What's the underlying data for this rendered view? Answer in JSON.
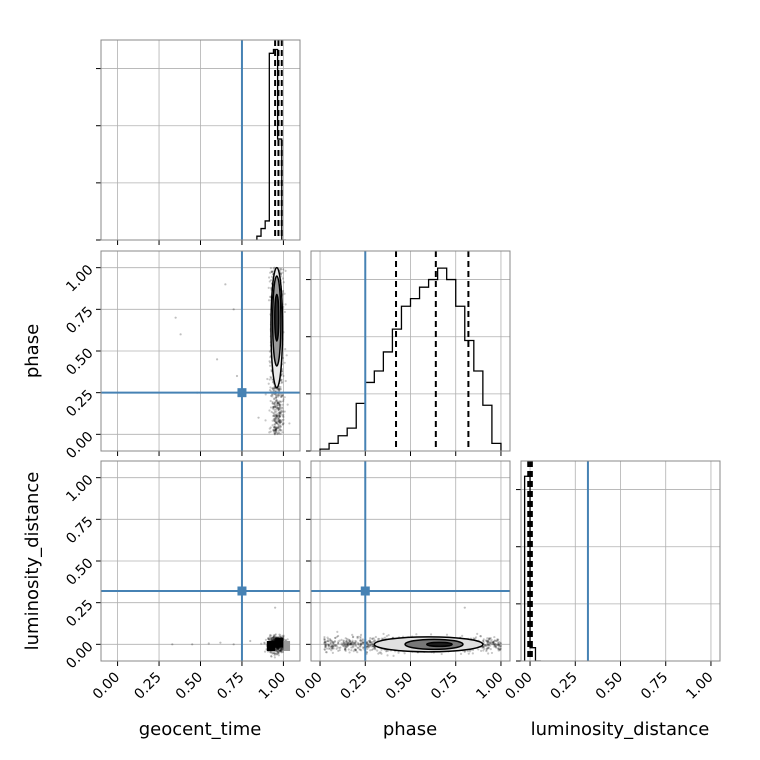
{
  "colors": {
    "truth": "#4682b4",
    "hist": "#000000",
    "grid": "#b0b0b0",
    "frame": "#888888"
  },
  "chart_data": {
    "type": "corner",
    "parameters": [
      "geocent_time",
      "phase",
      "luminosity_distance"
    ],
    "truths": [
      0.75,
      0.25,
      0.32
    ],
    "grid": true,
    "x_ticks": [
      "0.00",
      "0.25",
      "0.50",
      "0.75",
      "1.00"
    ],
    "y_ticks": [
      "0.00",
      "0.25",
      "0.50",
      "0.75",
      "1.00"
    ],
    "diagonal": [
      {
        "parameter": "geocent_time",
        "xlim": [
          -0.1,
          1.1
        ],
        "ymax": 1.0,
        "bin_edges": [
          0.84,
          0.865,
          0.89,
          0.915,
          0.94,
          0.965,
          0.99,
          1.015
        ],
        "counts": [
          0.02,
          0.06,
          0.1,
          0.98,
          1.0,
          0.53,
          0.0
        ],
        "quantiles": [
          0.95,
          0.97,
          0.99
        ]
      },
      {
        "parameter": "phase",
        "xlim": [
          -0.05,
          1.05
        ],
        "ymax": 1.0,
        "bin_edges": [
          0.0,
          0.05,
          0.1,
          0.15,
          0.2,
          0.25,
          0.3,
          0.35,
          0.4,
          0.45,
          0.5,
          0.55,
          0.6,
          0.65,
          0.7,
          0.75,
          0.8,
          0.85,
          0.9,
          0.95,
          1.0
        ],
        "counts": [
          0.01,
          0.04,
          0.08,
          0.12,
          0.25,
          0.36,
          0.42,
          0.52,
          0.64,
          0.76,
          0.8,
          0.86,
          0.9,
          0.96,
          0.9,
          0.76,
          0.58,
          0.42,
          0.24,
          0.04
        ],
        "quantiles": [
          0.42,
          0.64,
          0.82
        ]
      },
      {
        "parameter": "luminosity_distance",
        "xlim": [
          -0.05,
          1.05
        ],
        "ymax": 1.0,
        "bin_edges": [
          -0.03,
          0.0,
          0.03,
          0.06
        ],
        "counts": [
          0.97,
          0.07,
          0.0
        ],
        "quantiles": [
          -0.01,
          0.0,
          0.01
        ]
      }
    ],
    "panels_2d": [
      {
        "x": "geocent_time",
        "y": "phase",
        "xlim": [
          -0.1,
          1.1
        ],
        "ylim": [
          -0.1,
          1.1
        ],
        "samples": {
          "x_center": 0.96,
          "x_spread": 0.02,
          "y_min": 0.0,
          "y_max": 1.0,
          "count": 900
        },
        "outliers": [
          [
            0.35,
            0.7
          ],
          [
            0.38,
            0.6
          ],
          [
            0.48,
            0.25
          ],
          [
            0.6,
            0.45
          ],
          [
            0.65,
            0.9
          ],
          [
            0.7,
            0.75
          ],
          [
            0.72,
            0.35
          ],
          [
            0.85,
            0.1
          ]
        ],
        "contours": [
          {
            "cx": 0.96,
            "cy": 0.7,
            "rx": 0.012,
            "ry": 0.14,
            "fill": "#2b2b2b"
          },
          {
            "cx": 0.96,
            "cy": 0.68,
            "rx": 0.025,
            "ry": 0.27,
            "fill": "#9a9a9a"
          },
          {
            "cx": 0.96,
            "cy": 0.64,
            "rx": 0.035,
            "ry": 0.36,
            "fill": "#e8e8e8"
          }
        ]
      },
      {
        "x": "geocent_time",
        "y": "luminosity_distance",
        "xlim": [
          -0.1,
          1.1
        ],
        "ylim": [
          -0.1,
          1.1
        ],
        "samples": {
          "x_center": 0.96,
          "x_spread": 0.025,
          "y_center": 0.0,
          "y_spread": 0.025,
          "count": 500
        },
        "outliers": [
          [
            0.33,
            0.0
          ],
          [
            0.45,
            0.0
          ],
          [
            0.55,
            0.005
          ],
          [
            0.62,
            0.01
          ],
          [
            0.7,
            0.0
          ],
          [
            0.8,
            0.02
          ],
          [
            0.95,
            0.22
          ]
        ],
        "blocks": [
          {
            "x0": 0.9,
            "x1": 0.95,
            "y0": -0.04,
            "y1": 0.02,
            "fill": "#000000"
          },
          {
            "x0": 0.95,
            "x1": 1.0,
            "y0": -0.02,
            "y1": 0.04,
            "fill": "#000000"
          },
          {
            "x0": 1.0,
            "x1": 1.04,
            "y0": -0.04,
            "y1": 0.02,
            "fill": "#999999"
          }
        ]
      },
      {
        "x": "phase",
        "y": "luminosity_distance",
        "xlim": [
          -0.05,
          1.05
        ],
        "ylim": [
          -0.1,
          1.1
        ],
        "samples": {
          "x_min": 0.02,
          "x_max": 1.0,
          "y_center": 0.0,
          "y_spread": 0.022,
          "count": 900
        },
        "outliers": [
          [
            0.8,
            0.22
          ],
          [
            0.1,
            0.05
          ]
        ],
        "contours": [
          {
            "cx": 0.66,
            "cy": 0.0,
            "rx": 0.07,
            "ry": 0.012,
            "fill": "#1c1c1c"
          },
          {
            "cx": 0.63,
            "cy": 0.0,
            "rx": 0.16,
            "ry": 0.03,
            "fill": "#777777"
          },
          {
            "cx": 0.6,
            "cy": 0.0,
            "rx": 0.3,
            "ry": 0.045,
            "fill": "#e0e0e0"
          }
        ]
      }
    ]
  }
}
